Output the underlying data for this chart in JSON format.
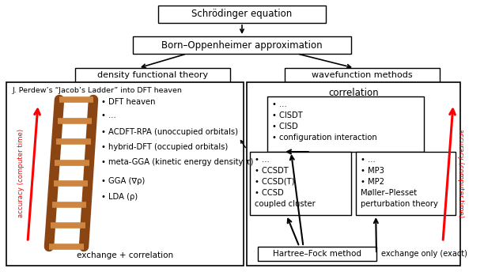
{
  "bg_color": "#ffffff",
  "box_color": "#ffffff",
  "box_edge": "#000000",
  "text_color": "#000000",
  "rail_color": "#8B4513",
  "rung_color": "#CD853F",
  "arrow_red": "#ff0000",
  "title": "Schrödinger equation",
  "bo_approx": "Born–Oppenheimer approximation",
  "dft_label": "density functional theory",
  "wf_label": "wavefunction methods",
  "jacob_title": "J. Perdew’s “Jacob’s Ladder” into DFT heaven",
  "exchange_corr": "exchange + correlation",
  "corr_label": "correlation",
  "ci_items": "• ...\n• CISDT\n• CISD\n• configuration interaction",
  "cc_items": "• ...\n• CCSDT\n• CCSD(T)\n• CCSD\ncoupled cluster",
  "mp_items": "• ...\n• MP3\n• MP2\nMøller–Plesset\nperturbation theory",
  "dft_items_list": [
    "• DFT heaven",
    "• ...",
    "• ACDFT-RPA (unoccupied orbitals)",
    "• hybrid-DFT (occupied orbitals)",
    "• meta-GGA (kinetic energy density τ)",
    "• GGA (∇ρ)",
    "• LDA (ρ)"
  ],
  "hf_label": "Hartree–Fock method",
  "exchange_only": "exchange only (exact)",
  "acc_time": "accuracy (computer time)"
}
